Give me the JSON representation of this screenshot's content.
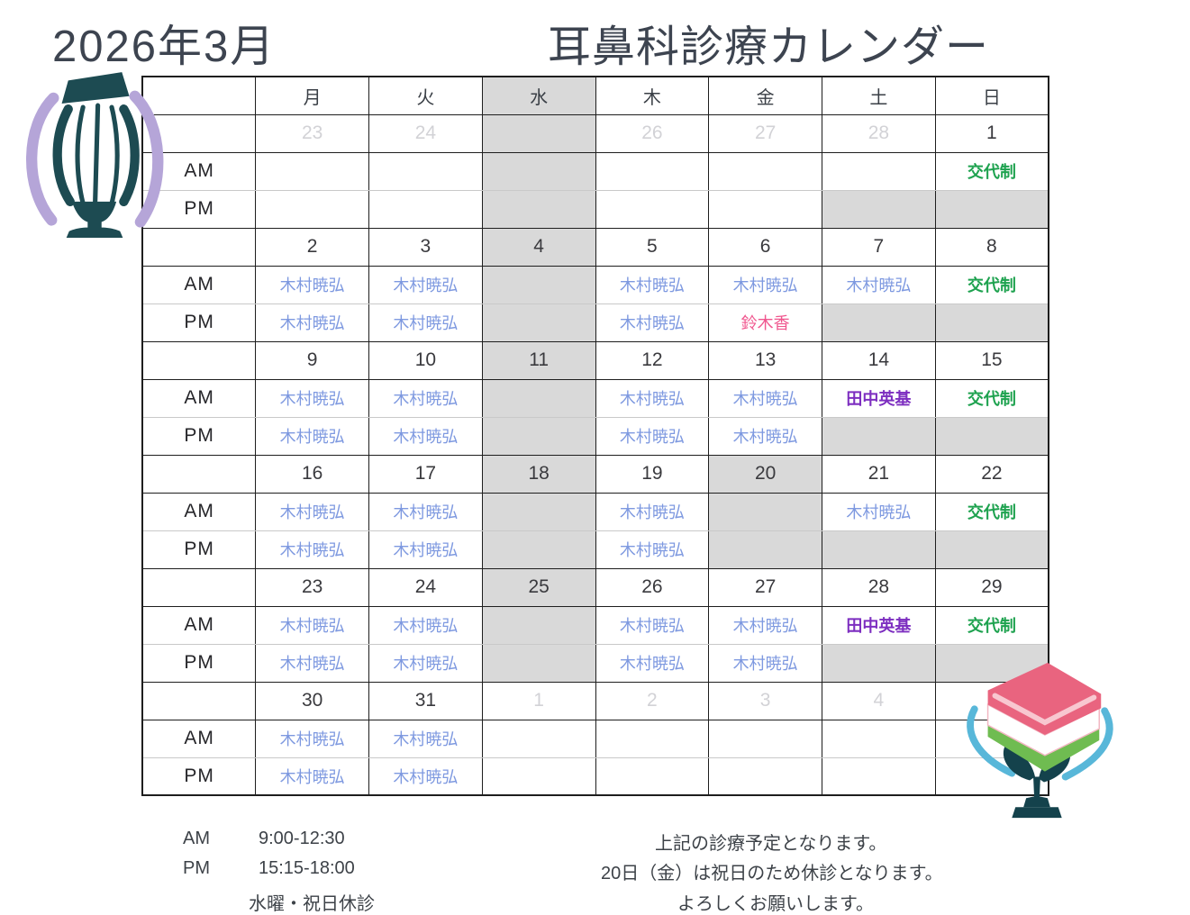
{
  "title": {
    "month": "2026年3月",
    "name": "耳鼻科診療カレンダー"
  },
  "colors": {
    "doctor_kimura": "#7e99e0",
    "doctor_suzuki": "#f0568e",
    "doctor_tanaka": "#7d2ec0",
    "rotation": "#1ea24f",
    "closed_cell_bg": "#d9d9d9",
    "grid_line": "#1e1e1e"
  },
  "calendar": {
    "day_headers": [
      "月",
      "火",
      "水",
      "木",
      "金",
      "土",
      "日"
    ],
    "closed_header_index": 2,
    "row_labels": {
      "am": "AM",
      "pm": "PM"
    },
    "weeks": [
      {
        "dates": [
          [
            "23",
            "muted",
            0
          ],
          [
            "24",
            "muted",
            0
          ],
          [
            "",
            "",
            1
          ],
          [
            "26",
            "muted",
            0
          ],
          [
            "27",
            "muted",
            0
          ],
          [
            "28",
            "muted",
            0
          ],
          [
            "1",
            "",
            0
          ]
        ],
        "am": [
          [
            "",
            "",
            0
          ],
          [
            "",
            "",
            0
          ],
          [
            "",
            "",
            1
          ],
          [
            "",
            "",
            0
          ],
          [
            "",
            "",
            0
          ],
          [
            "",
            "",
            0
          ],
          [
            "交代制",
            "green",
            0
          ]
        ],
        "pm": [
          [
            "",
            "",
            0
          ],
          [
            "",
            "",
            0
          ],
          [
            "",
            "",
            1
          ],
          [
            "",
            "",
            0
          ],
          [
            "",
            "",
            0
          ],
          [
            "",
            "",
            1
          ],
          [
            "",
            "",
            1
          ]
        ]
      },
      {
        "dates": [
          [
            "2",
            "",
            0
          ],
          [
            "3",
            "",
            0
          ],
          [
            "4",
            "",
            1
          ],
          [
            "5",
            "",
            0
          ],
          [
            "6",
            "",
            0
          ],
          [
            "7",
            "",
            0
          ],
          [
            "8",
            "",
            0
          ]
        ],
        "am": [
          [
            "木村暁弘",
            "blue",
            0
          ],
          [
            "木村暁弘",
            "blue",
            0
          ],
          [
            "",
            "",
            1
          ],
          [
            "木村暁弘",
            "blue",
            0
          ],
          [
            "木村暁弘",
            "blue",
            0
          ],
          [
            "木村暁弘",
            "blue",
            0
          ],
          [
            "交代制",
            "green",
            0
          ]
        ],
        "pm": [
          [
            "木村暁弘",
            "blue",
            0
          ],
          [
            "木村暁弘",
            "blue",
            0
          ],
          [
            "",
            "",
            1
          ],
          [
            "木村暁弘",
            "blue",
            0
          ],
          [
            "鈴木香",
            "pink",
            0
          ],
          [
            "",
            "",
            1
          ],
          [
            "",
            "",
            1
          ]
        ]
      },
      {
        "dates": [
          [
            "9",
            "",
            0
          ],
          [
            "10",
            "",
            0
          ],
          [
            "11",
            "",
            1
          ],
          [
            "12",
            "",
            0
          ],
          [
            "13",
            "",
            0
          ],
          [
            "14",
            "",
            0
          ],
          [
            "15",
            "",
            0
          ]
        ],
        "am": [
          [
            "木村暁弘",
            "blue",
            0
          ],
          [
            "木村暁弘",
            "blue",
            0
          ],
          [
            "",
            "",
            1
          ],
          [
            "木村暁弘",
            "blue",
            0
          ],
          [
            "木村暁弘",
            "blue",
            0
          ],
          [
            "田中英基",
            "purple",
            0
          ],
          [
            "交代制",
            "green",
            0
          ]
        ],
        "pm": [
          [
            "木村暁弘",
            "blue",
            0
          ],
          [
            "木村暁弘",
            "blue",
            0
          ],
          [
            "",
            "",
            1
          ],
          [
            "木村暁弘",
            "blue",
            0
          ],
          [
            "木村暁弘",
            "blue",
            0
          ],
          [
            "",
            "",
            1
          ],
          [
            "",
            "",
            1
          ]
        ]
      },
      {
        "dates": [
          [
            "16",
            "",
            0
          ],
          [
            "17",
            "",
            0
          ],
          [
            "18",
            "",
            1
          ],
          [
            "19",
            "",
            0
          ],
          [
            "20",
            "",
            1
          ],
          [
            "21",
            "",
            0
          ],
          [
            "22",
            "",
            0
          ]
        ],
        "am": [
          [
            "木村暁弘",
            "blue",
            0
          ],
          [
            "木村暁弘",
            "blue",
            0
          ],
          [
            "",
            "",
            1
          ],
          [
            "木村暁弘",
            "blue",
            0
          ],
          [
            "",
            "",
            1
          ],
          [
            "木村暁弘",
            "blue",
            0
          ],
          [
            "交代制",
            "green",
            0
          ]
        ],
        "pm": [
          [
            "木村暁弘",
            "blue",
            0
          ],
          [
            "木村暁弘",
            "blue",
            0
          ],
          [
            "",
            "",
            1
          ],
          [
            "木村暁弘",
            "blue",
            0
          ],
          [
            "",
            "",
            1
          ],
          [
            "",
            "",
            1
          ],
          [
            "",
            "",
            1
          ]
        ]
      },
      {
        "dates": [
          [
            "23",
            "",
            0
          ],
          [
            "24",
            "",
            0
          ],
          [
            "25",
            "",
            1
          ],
          [
            "26",
            "",
            0
          ],
          [
            "27",
            "",
            0
          ],
          [
            "28",
            "",
            0
          ],
          [
            "29",
            "",
            0
          ]
        ],
        "am": [
          [
            "木村暁弘",
            "blue",
            0
          ],
          [
            "木村暁弘",
            "blue",
            0
          ],
          [
            "",
            "",
            1
          ],
          [
            "木村暁弘",
            "blue",
            0
          ],
          [
            "木村暁弘",
            "blue",
            0
          ],
          [
            "田中英基",
            "purple",
            0
          ],
          [
            "交代制",
            "green",
            0
          ]
        ],
        "pm": [
          [
            "木村暁弘",
            "blue",
            0
          ],
          [
            "木村暁弘",
            "blue",
            0
          ],
          [
            "",
            "",
            1
          ],
          [
            "木村暁弘",
            "blue",
            0
          ],
          [
            "木村暁弘",
            "blue",
            0
          ],
          [
            "",
            "",
            1
          ],
          [
            "",
            "",
            1
          ]
        ]
      },
      {
        "dates": [
          [
            "30",
            "",
            0
          ],
          [
            "31",
            "",
            0
          ],
          [
            "1",
            "muted",
            0
          ],
          [
            "2",
            "muted",
            0
          ],
          [
            "3",
            "muted",
            0
          ],
          [
            "4",
            "muted",
            0
          ],
          [
            "",
            "",
            0
          ]
        ],
        "am": [
          [
            "木村暁弘",
            "blue",
            0
          ],
          [
            "木村暁弘",
            "blue",
            0
          ],
          [
            "",
            "",
            0
          ],
          [
            "",
            "",
            0
          ],
          [
            "",
            "",
            0
          ],
          [
            "",
            "",
            0
          ],
          [
            "",
            "",
            0
          ]
        ],
        "pm": [
          [
            "木村暁弘",
            "blue",
            0
          ],
          [
            "木村暁弘",
            "blue",
            0
          ],
          [
            "",
            "",
            0
          ],
          [
            "",
            "",
            0
          ],
          [
            "",
            "",
            0
          ],
          [
            "",
            "",
            0
          ],
          [
            "",
            "",
            0
          ]
        ]
      }
    ]
  },
  "footer": {
    "am_label": "AM",
    "am_time": "9:00-12:30",
    "pm_label": "PM",
    "pm_time": "15:15-18:00",
    "closed_note": "水曜・祝日休診",
    "note1": "上記の診療予定となります。",
    "note2": "20日（金）は祝日のため休診となります。",
    "note3": "よろしくお願いします。"
  }
}
